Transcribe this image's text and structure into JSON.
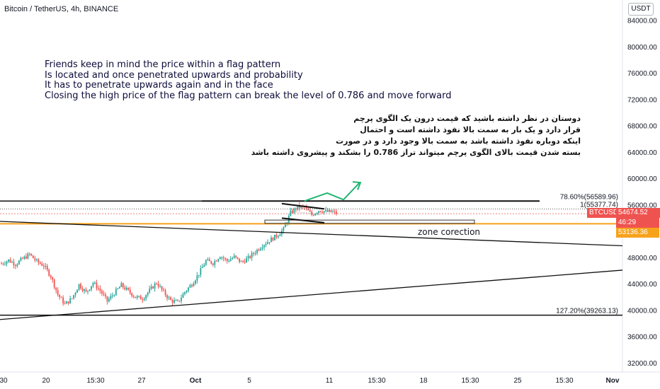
{
  "header": {
    "symbol_title": "Bitcoin / TetherUS, 4h, BINANCE",
    "currency": "USDT"
  },
  "annotations": {
    "english": [
      "Friends keep in mind the price within a flag pattern",
      "Is located and once penetrated upwards and probability",
      "It has to penetrate upwards again and in the face",
      "Closing the high price of the flag pattern can break the level of 0.786 and move forward"
    ],
    "persian": [
      "دوستان در نظر داشته باشید که قیمت درون یک الگوی پرچم",
      "قرار دارد و یک بار به سمت بالا نفوذ داشته است و احتمال",
      "اینکه دوباره نفوذ داشته باشد به سمت بالا وجود دارد و در صورت",
      "بسته شدن قیمت بالای الگوی پرچم میتواند تراز 0.786 را بشکند و پیشروی داشته باشد"
    ],
    "zone_label": "zone corection"
  },
  "price_tags": {
    "symbol": "BTCUSDT",
    "last_price": "54674.52",
    "countdown": "46:29",
    "orange_level": "53136.36"
  },
  "colors": {
    "up": "#26a69a",
    "down": "#ef5350",
    "orange": "#f7a21b",
    "arrow": "#22b573",
    "text": "#131722"
  },
  "chart_data": {
    "type": "candlestick",
    "title": "Bitcoin / TetherUS, 4h, BINANCE",
    "timeframe": "4h",
    "ylim": [
      31000,
      85000
    ],
    "y_ticks": [
      32000,
      36000,
      40000,
      44000,
      48000,
      52000,
      56000,
      60000,
      64000,
      68000,
      72000,
      76000,
      80000,
      84000
    ],
    "x_tick_labels": [
      "30",
      "20",
      "15:30",
      "27",
      "Oct",
      "5",
      "11",
      "15:30",
      "18",
      "15:30",
      "25",
      "15:30",
      "Nov"
    ],
    "fib_levels": [
      {
        "label": "78.60%(56589.96)",
        "ratio": 0.786,
        "price": 56589.96
      },
      {
        "label": "1(55377.74)",
        "ratio": 1,
        "price": 55377.74
      },
      {
        "label": "127.20%(39263.13)",
        "ratio": 1.272,
        "price": 39263.13
      }
    ],
    "horizontal_lines": [
      {
        "price": 53136.36,
        "color": "orange"
      }
    ],
    "last_price": 54674.52,
    "price_path": [
      [
        0,
        47100
      ],
      [
        4,
        47600
      ],
      [
        8,
        47000
      ],
      [
        12,
        47800
      ],
      [
        16,
        48500
      ],
      [
        20,
        47400
      ],
      [
        24,
        46800
      ],
      [
        28,
        45200
      ],
      [
        32,
        42400
      ],
      [
        36,
        40900
      ],
      [
        40,
        41800
      ],
      [
        44,
        43900
      ],
      [
        48,
        42700
      ],
      [
        52,
        44200
      ],
      [
        56,
        43000
      ],
      [
        60,
        41400
      ],
      [
        64,
        42600
      ],
      [
        68,
        43800
      ],
      [
        72,
        42900
      ],
      [
        76,
        42000
      ],
      [
        80,
        41800
      ],
      [
        84,
        43000
      ],
      [
        88,
        44200
      ],
      [
        92,
        42700
      ],
      [
        96,
        41500
      ],
      [
        100,
        41200
      ],
      [
        104,
        42800
      ],
      [
        108,
        44000
      ],
      [
        112,
        45600
      ],
      [
        116,
        47500
      ],
      [
        120,
        47200
      ],
      [
        124,
        48300
      ],
      [
        128,
        47500
      ],
      [
        132,
        48100
      ],
      [
        136,
        47300
      ],
      [
        140,
        47900
      ],
      [
        144,
        48900
      ],
      [
        148,
        49900
      ],
      [
        152,
        50600
      ],
      [
        156,
        51300
      ],
      [
        160,
        52300
      ],
      [
        164,
        54800
      ],
      [
        168,
        55700
      ],
      [
        172,
        55600
      ],
      [
        176,
        54500
      ],
      [
        180,
        55200
      ],
      [
        184,
        55000
      ],
      [
        188,
        54900
      ],
      [
        190,
        54674.52
      ]
    ],
    "green_arrow_path": [
      [
        190,
        56600
      ],
      [
        194,
        57800
      ],
      [
        197,
        57100
      ],
      [
        202,
        58400
      ]
    ]
  }
}
